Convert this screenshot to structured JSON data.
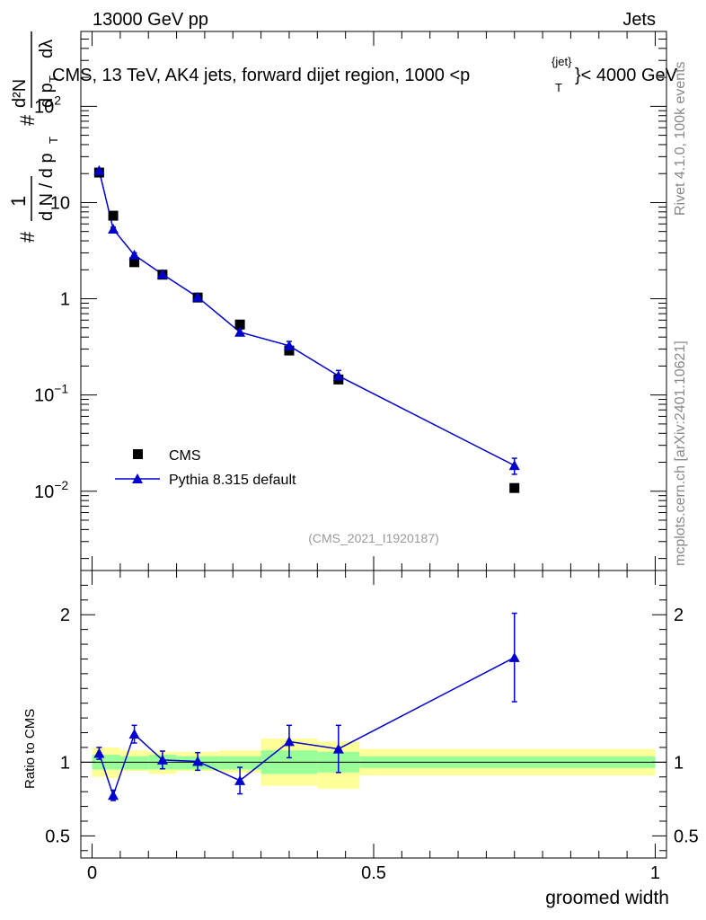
{
  "header": {
    "left": "13000 GeV pp",
    "right": "Jets",
    "plot_title_pre": "CMS, 13 TeV, AK4 jets, forward dijet region, 1000 <p",
    "plot_title_sub": "T",
    "plot_title_sup": "{jet}",
    "plot_title_post": "}< 4000 GeV",
    "side_rivet": "Rivet 4.1.0,  100k events",
    "side_mcplots": "mcplots.cern.ch [arXiv:2401.10621]",
    "analysis_id": "(CMS_2021_I1920187)"
  },
  "y_axis_label": {
    "hash1": "#",
    "one": "1",
    "dN": "d N / d p",
    "dN_sub": "T",
    "hash2": "#",
    "d2N": "d²N",
    "dpt": "d p",
    "dpt_sub": "T",
    "dlambda": "dλ"
  },
  "chart_data": [
    {
      "type": "scatter",
      "panel": "main",
      "xscale": "linear",
      "yscale": "log",
      "xlim": [
        -0.02,
        1.02
      ],
      "ylim": [
        0.0015,
        600
      ],
      "yticks": [
        {
          "value": 100,
          "base": "10",
          "exp": "2"
        },
        {
          "value": 10,
          "base": "10",
          "exp": ""
        },
        {
          "value": 1,
          "base": "1",
          "exp": ""
        },
        {
          "value": 0.1,
          "base": "10",
          "exp": "−1"
        },
        {
          "value": 0.01,
          "base": "10",
          "exp": "−2"
        }
      ],
      "legend_position": "lower-left",
      "series": [
        {
          "name": "CMS",
          "marker": "square",
          "color": "#000000",
          "x": [
            0.0125,
            0.0375,
            0.075,
            0.125,
            0.1875,
            0.2625,
            0.35,
            0.4375,
            0.75
          ],
          "y": [
            20.5,
            7.3,
            2.4,
            1.78,
            1.03,
            0.54,
            0.29,
            0.145,
            0.0108
          ]
        },
        {
          "name": "Pythia 8.315 default",
          "marker": "triangle",
          "color": "#0000cc",
          "x": [
            0.0125,
            0.0375,
            0.075,
            0.125,
            0.1875,
            0.2625,
            0.35,
            0.4375,
            0.75
          ],
          "y": [
            21.5,
            5.3,
            2.85,
            1.8,
            1.04,
            0.45,
            0.325,
            0.158,
            0.0185
          ],
          "yerr": [
            0.8,
            0.25,
            0.15,
            0.09,
            0.06,
            0.035,
            0.035,
            0.022,
            0.0035
          ]
        }
      ]
    },
    {
      "type": "line",
      "panel": "ratio",
      "ylabel": "Ratio to CMS",
      "xlabel": "groomed width",
      "xlim": [
        -0.02,
        1.02
      ],
      "ylim": [
        0.35,
        2.3
      ],
      "xticks": [
        {
          "value": 0,
          "label": "0"
        },
        {
          "value": 0.5,
          "label": "0.5"
        },
        {
          "value": 1,
          "label": "1"
        }
      ],
      "yticks": [
        {
          "value": 0.5,
          "label": "0.5"
        },
        {
          "value": 1,
          "label": "1"
        },
        {
          "value": 2,
          "label": "2"
        }
      ],
      "bands": {
        "edges": [
          0,
          0.025,
          0.05,
          0.1,
          0.15,
          0.225,
          0.3,
          0.4,
          0.475,
          1.0
        ],
        "inner_low": [
          0.95,
          0.95,
          0.95,
          0.95,
          0.95,
          0.95,
          0.92,
          0.93,
          0.96
        ],
        "inner_high": [
          1.05,
          1.05,
          1.04,
          1.05,
          1.04,
          1.04,
          1.08,
          1.07,
          1.04
        ],
        "outer_low": [
          0.9,
          0.89,
          0.94,
          0.92,
          0.94,
          0.93,
          0.84,
          0.82,
          0.91
        ],
        "outer_high": [
          1.1,
          1.1,
          1.08,
          1.07,
          1.07,
          1.08,
          1.16,
          1.14,
          1.09
        ],
        "inner_color": "#99ff99",
        "outer_color": "#ffff99"
      },
      "series": [
        {
          "name": "Pythia 8.315 default",
          "color": "#0000cc",
          "x": [
            0.0125,
            0.0375,
            0.075,
            0.125,
            0.1875,
            0.2625,
            0.35,
            0.4375,
            0.75
          ],
          "y": [
            1.06,
            0.775,
            1.19,
            1.015,
            1.005,
            0.875,
            1.14,
            1.09,
            1.71
          ],
          "yerr_low": [
            0.04,
            0.035,
            0.06,
            0.06,
            0.06,
            0.09,
            0.11,
            0.16,
            0.3
          ],
          "yerr_high": [
            0.04,
            0.035,
            0.06,
            0.06,
            0.06,
            0.09,
            0.11,
            0.16,
            0.3
          ]
        }
      ]
    }
  ]
}
